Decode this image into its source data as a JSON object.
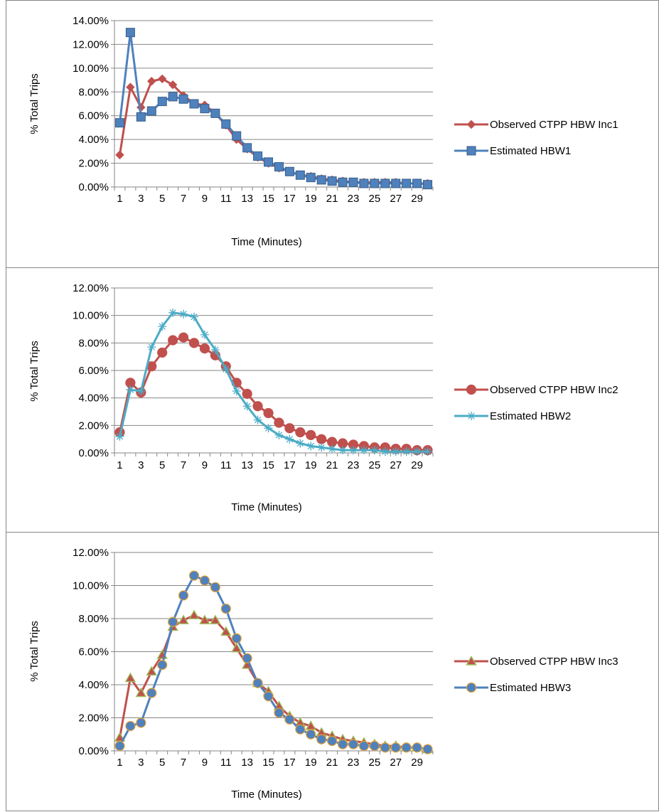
{
  "chart_data": [
    {
      "type": "line",
      "title": "",
      "xlabel": "Time (Minutes)",
      "ylabel": "% Total Trips",
      "ylim": [
        0,
        0.14
      ],
      "ytick_labels": [
        "0.00%",
        "2.00%",
        "4.00%",
        "6.00%",
        "8.00%",
        "10.00%",
        "12.00%",
        "14.00%"
      ],
      "xtick_labels": [
        "1",
        "3",
        "5",
        "7",
        "9",
        "11",
        "13",
        "15",
        "17",
        "19",
        "21",
        "23",
        "25",
        "27",
        "29"
      ],
      "grid": true,
      "legend_position": "right",
      "x": [
        1,
        2,
        3,
        4,
        5,
        6,
        7,
        8,
        9,
        10,
        11,
        12,
        13,
        14,
        15,
        16,
        17,
        18,
        19,
        20,
        21,
        22,
        23,
        24,
        25,
        26,
        27,
        28,
        29,
        30
      ],
      "series": [
        {
          "name": "Observed CTPP HBW Inc1",
          "color": "#C0504D",
          "marker": "diamond",
          "values": [
            0.027,
            0.084,
            0.067,
            0.089,
            0.091,
            0.086,
            0.077,
            0.07,
            0.069,
            0.062,
            0.052,
            0.04,
            0.032,
            0.025,
            0.02,
            0.016,
            0.013,
            0.01,
            0.009,
            0.007,
            0.006,
            0.005,
            0.004,
            0.004,
            0.004,
            0.004,
            0.004,
            0.003,
            0.003,
            0.003
          ]
        },
        {
          "name": "Estimated HBW1",
          "color": "#4F81BD",
          "marker": "square",
          "values": [
            0.054,
            0.13,
            0.059,
            0.064,
            0.072,
            0.076,
            0.074,
            0.07,
            0.066,
            0.062,
            0.053,
            0.043,
            0.033,
            0.026,
            0.021,
            0.017,
            0.013,
            0.01,
            0.008,
            0.006,
            0.005,
            0.004,
            0.004,
            0.003,
            0.003,
            0.003,
            0.003,
            0.003,
            0.003,
            0.002
          ]
        }
      ]
    },
    {
      "type": "line",
      "title": "",
      "xlabel": "Time (Minutes)",
      "ylabel": "% Total Trips",
      "ylim": [
        0,
        0.12
      ],
      "ytick_labels": [
        "0.00%",
        "2.00%",
        "4.00%",
        "6.00%",
        "8.00%",
        "10.00%",
        "12.00%"
      ],
      "xtick_labels": [
        "1",
        "3",
        "5",
        "7",
        "9",
        "11",
        "13",
        "15",
        "17",
        "19",
        "21",
        "23",
        "25",
        "27",
        "29"
      ],
      "grid": true,
      "legend_position": "right",
      "x": [
        1,
        2,
        3,
        4,
        5,
        6,
        7,
        8,
        9,
        10,
        11,
        12,
        13,
        14,
        15,
        16,
        17,
        18,
        19,
        20,
        21,
        22,
        23,
        24,
        25,
        26,
        27,
        28,
        29,
        30
      ],
      "series": [
        {
          "name": "Observed CTPP HBW Inc2",
          "color": "#C0504D",
          "marker": "circle",
          "values": [
            0.015,
            0.051,
            0.044,
            0.063,
            0.073,
            0.082,
            0.084,
            0.08,
            0.076,
            0.071,
            0.063,
            0.051,
            0.043,
            0.034,
            0.029,
            0.022,
            0.018,
            0.015,
            0.013,
            0.01,
            0.008,
            0.007,
            0.006,
            0.005,
            0.004,
            0.004,
            0.003,
            0.003,
            0.002,
            0.002
          ]
        },
        {
          "name": "Estimated HBW2",
          "color": "#4BACC6",
          "marker": "star",
          "values": [
            0.012,
            0.046,
            0.045,
            0.077,
            0.092,
            0.102,
            0.101,
            0.099,
            0.086,
            0.075,
            0.061,
            0.045,
            0.034,
            0.024,
            0.018,
            0.013,
            0.01,
            0.007,
            0.005,
            0.004,
            0.003,
            0.002,
            0.002,
            0.002,
            0.002,
            0.001,
            0.001,
            0.001,
            0.001,
            0.001
          ]
        }
      ]
    },
    {
      "type": "line",
      "title": "",
      "xlabel": "Time (Minutes)",
      "ylabel": "% Total Trips",
      "ylim": [
        0,
        0.12
      ],
      "ytick_labels": [
        "0.00%",
        "2.00%",
        "4.00%",
        "6.00%",
        "8.00%",
        "10.00%",
        "12.00%"
      ],
      "xtick_labels": [
        "1",
        "3",
        "5",
        "7",
        "9",
        "11",
        "13",
        "15",
        "17",
        "19",
        "21",
        "23",
        "25",
        "27",
        "29"
      ],
      "grid": true,
      "legend_position": "right",
      "x": [
        1,
        2,
        3,
        4,
        5,
        6,
        7,
        8,
        9,
        10,
        11,
        12,
        13,
        14,
        15,
        16,
        17,
        18,
        19,
        20,
        21,
        22,
        23,
        24,
        25,
        26,
        27,
        28,
        29,
        30
      ],
      "series": [
        {
          "name": "Observed CTPP HBW Inc3",
          "color": "#C0504D",
          "marker": "triangle",
          "values": [
            0.008,
            0.044,
            0.035,
            0.048,
            0.058,
            0.075,
            0.079,
            0.082,
            0.079,
            0.079,
            0.072,
            0.062,
            0.052,
            0.041,
            0.036,
            0.027,
            0.021,
            0.017,
            0.015,
            0.011,
            0.009,
            0.007,
            0.006,
            0.005,
            0.004,
            0.003,
            0.003,
            0.002,
            0.002,
            0.001
          ]
        },
        {
          "name": "Estimated HBW3",
          "color": "#4F81BD",
          "marker": "circle",
          "values": [
            0.003,
            0.015,
            0.017,
            0.035,
            0.052,
            0.078,
            0.094,
            0.106,
            0.103,
            0.099,
            0.086,
            0.068,
            0.056,
            0.041,
            0.033,
            0.023,
            0.019,
            0.013,
            0.01,
            0.007,
            0.006,
            0.004,
            0.004,
            0.003,
            0.003,
            0.002,
            0.002,
            0.002,
            0.002,
            0.001
          ]
        }
      ]
    }
  ]
}
